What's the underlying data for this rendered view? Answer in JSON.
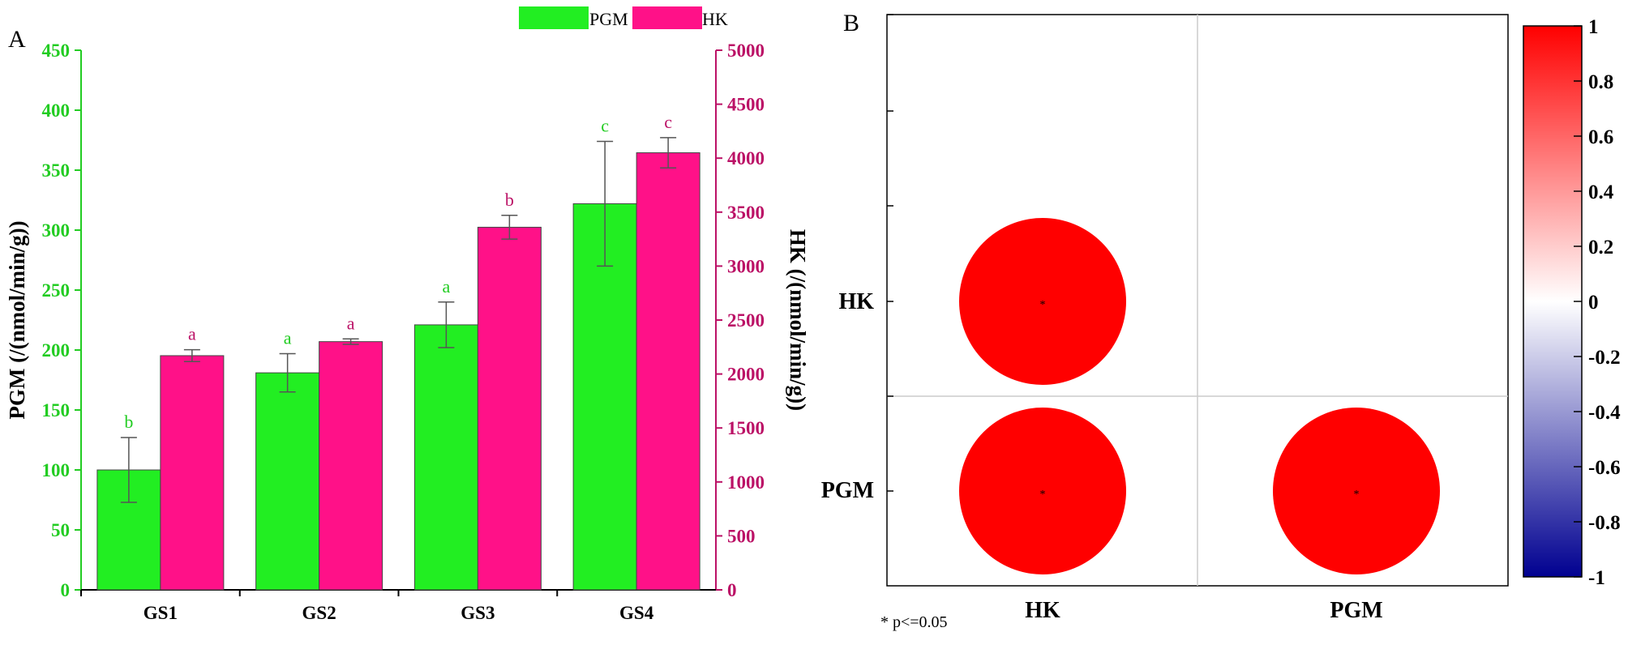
{
  "colors": {
    "pgm": "#22ee22",
    "hk": "#ff1188",
    "pgm_axis": "#22cc22",
    "hk_axis": "#bb1166",
    "axis": "#000000",
    "corr_pos": "#ff0000",
    "corr_mid": "#ffffff",
    "corr_neg": "#000090"
  },
  "chart_data": [
    {
      "panel_label": "A",
      "type": "bar",
      "categories": [
        "GS1",
        "GS2",
        "GS3",
        "GS4"
      ],
      "series": [
        {
          "name": "PGM",
          "axis": "left",
          "values": [
            100,
            181,
            221,
            322
          ],
          "errors": [
            27,
            16,
            19,
            52
          ],
          "letters": [
            "b",
            "a",
            "a",
            "c"
          ]
        },
        {
          "name": "HK",
          "axis": "right",
          "values": [
            2170,
            2300,
            3360,
            4050
          ],
          "errors": [
            55,
            25,
            110,
            140
          ],
          "letters": [
            "a",
            "a",
            "b",
            "c"
          ]
        }
      ],
      "ylabel": "PGM (/(nmol/min/g))",
      "ylabel_right": "HK (/(nmol/min/g))",
      "ylim": [
        0,
        450
      ],
      "ylim_right": [
        0,
        5000
      ],
      "yticks": [
        "0",
        "50",
        "100",
        "150",
        "200",
        "250",
        "300",
        "350",
        "400",
        "450"
      ],
      "yticks_right": [
        "0",
        "500",
        "1000",
        "1500",
        "2000",
        "2500",
        "3000",
        "3500",
        "4000",
        "4500",
        "5000"
      ],
      "legend": [
        "PGM",
        "HK"
      ],
      "legend_position": "top-right"
    },
    {
      "panel_label": "B",
      "type": "heatmap",
      "rows": [
        "HK",
        "PGM"
      ],
      "cols": [
        "HK",
        "PGM"
      ],
      "cells": [
        {
          "row": "HK",
          "col": "HK",
          "r": 1,
          "sig": "*"
        },
        {
          "row": "PGM",
          "col": "HK",
          "r": 1,
          "sig": "*"
        },
        {
          "row": "PGM",
          "col": "PGM",
          "r": 1,
          "sig": "*"
        }
      ],
      "colorbar_ticks": [
        "1",
        "0.8",
        "0.6",
        "0.4",
        "0.2",
        "0",
        "-0.2",
        "-0.4",
        "-0.6",
        "-0.8",
        "-1"
      ],
      "colorbar_range": [
        -1,
        1
      ],
      "footnote": "* p<=0.05"
    }
  ]
}
